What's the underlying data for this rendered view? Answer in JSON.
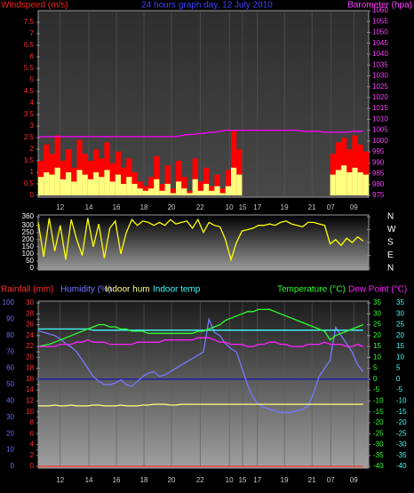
{
  "chart_data": [
    {
      "type": "bar",
      "title": "24 hours graph day, 12 July 2010",
      "ylabel": "Windspeed (m/s)",
      "y2label": "Barometer (hpa)",
      "x": [
        0,
        1,
        2,
        3,
        4,
        5,
        6,
        7,
        8,
        9,
        10,
        11,
        12,
        13,
        14,
        15,
        16,
        17,
        18,
        19,
        20,
        21,
        22,
        23,
        24,
        25,
        26,
        27,
        28,
        29,
        30,
        31,
        32,
        33,
        34,
        35,
        36,
        37,
        38,
        39,
        40,
        41,
        42,
        43,
        44,
        45,
        46,
        47,
        48,
        49,
        50,
        51,
        52,
        53,
        54,
        55,
        56,
        57,
        58,
        59
      ],
      "xlim": [
        0,
        60
      ],
      "xticks": [
        {
          "value": 4,
          "label": "12"
        },
        {
          "value": 9.2,
          "label": "14"
        },
        {
          "value": 14.2,
          "label": "16"
        },
        {
          "value": 19.2,
          "label": "18"
        },
        {
          "value": 24.2,
          "label": "20"
        },
        {
          "value": 29.4,
          "label": "22"
        },
        {
          "value": 34.7,
          "label": "10"
        },
        {
          "value": 37.1,
          "label": "15"
        },
        {
          "value": 39.8,
          "label": "17"
        },
        {
          "value": 44.7,
          "label": "19"
        },
        {
          "value": 49.7,
          "label": "21"
        },
        {
          "value": 53.1,
          "label": "07"
        },
        {
          "value": 57.3,
          "label": "09"
        }
      ],
      "ylim": [
        0,
        8
      ],
      "yticks": [
        0,
        0.5,
        1,
        1.5,
        2,
        2.5,
        3,
        3.5,
        4,
        4.5,
        5,
        5.5,
        6,
        6.5,
        7,
        7.5
      ],
      "y2lim": [
        975,
        1060
      ],
      "y2ticks": [
        975,
        980,
        985,
        990,
        995,
        1000,
        1005,
        1010,
        1015,
        1020,
        1025,
        1030,
        1035,
        1040,
        1045,
        1050,
        1055,
        1060
      ],
      "grid": true,
      "series": [
        {
          "color": "#ff0000",
          "values": [
            1.5,
            2.2,
            1.8,
            2.6,
            1.5,
            2.0,
            1.2,
            2.4,
            1.8,
            1.5,
            2.0,
            1.6,
            2.3,
            1.4,
            1.9,
            1.2,
            1.6,
            1.0,
            0.6,
            0.4,
            0.8,
            1.7,
            0.5,
            1.3,
            0.3,
            1.5,
            0.8,
            0.2,
            1.6,
            0.6,
            1.2,
            0.4,
            0.9,
            0.3,
            1.1,
            2.8,
            2.0,
            0,
            0,
            0,
            0,
            0,
            0,
            0,
            0,
            0,
            0,
            0,
            0,
            0,
            0,
            0,
            0,
            1.8,
            2.3,
            2.5,
            2.0,
            2.6,
            2.2,
            1.9
          ]
        },
        {
          "color": "#ffff80",
          "values": [
            0.8,
            1.0,
            0.9,
            1.2,
            0.7,
            1.0,
            0.6,
            1.1,
            0.9,
            0.7,
            1.0,
            0.8,
            1.1,
            0.6,
            0.9,
            0.5,
            0.8,
            0.5,
            0.3,
            0.2,
            0.3,
            0.7,
            0.2,
            0.5,
            0.1,
            0.6,
            0.3,
            0.1,
            0.7,
            0.2,
            0.5,
            0.2,
            0.4,
            0.1,
            0.4,
            1.2,
            0.9,
            0,
            0,
            0,
            0,
            0,
            0,
            0,
            0,
            0,
            0,
            0,
            0,
            0,
            0,
            0,
            0,
            0.9,
            1.1,
            1.3,
            1.0,
            1.2,
            1.0,
            0.9
          ]
        },
        {
          "type": "line",
          "axis": "y2",
          "color": "#ff00ff",
          "values": [
            1002,
            1002,
            1002,
            1002,
            1002,
            1002,
            1002,
            1002,
            1002,
            1002,
            1002,
            1002,
            1002,
            1002,
            1002,
            1002,
            1002,
            1002,
            1002,
            1002,
            1002,
            1002,
            1002,
            1002,
            1002,
            1002,
            1002.5,
            1003,
            1003,
            1003.5,
            1003.5,
            1004,
            1004,
            1004.5,
            1005,
            1005,
            1005,
            1005,
            1005,
            1005,
            1005,
            1005,
            1005,
            1005,
            1005,
            1005,
            1005,
            1005,
            1004.5,
            1004.5,
            1004.5,
            1004.5,
            1004,
            1004,
            1004,
            1004,
            1004,
            1004.5,
            1004.5,
            1004.5
          ]
        }
      ]
    },
    {
      "type": "line",
      "x": [
        0,
        1,
        2,
        3,
        4,
        5,
        6,
        7,
        8,
        9,
        10,
        11,
        12,
        13,
        14,
        15,
        16,
        17,
        18,
        19,
        20,
        21,
        22,
        23,
        24,
        25,
        26,
        27,
        28,
        29,
        30,
        31,
        32,
        33,
        34,
        35,
        36,
        37,
        38,
        39,
        40,
        41,
        42,
        43,
        44,
        45,
        46,
        47,
        48,
        49,
        50,
        51,
        52,
        53,
        54,
        55,
        56,
        57,
        58,
        59
      ],
      "xlim": [
        0,
        60
      ],
      "ylim": [
        0,
        360
      ],
      "yticks": [
        0,
        50,
        100,
        150,
        200,
        250,
        300,
        360
      ],
      "y2ticks": [
        {
          "value": 360,
          "label": "N"
        },
        {
          "value": 270,
          "label": "W"
        },
        {
          "value": 180,
          "label": "S"
        },
        {
          "value": 90,
          "label": "E"
        },
        {
          "value": 0,
          "label": "N"
        }
      ],
      "series": [
        {
          "color": "#ffff00",
          "values": [
            320,
            80,
            350,
            120,
            300,
            60,
            340,
            200,
            90,
            350,
            150,
            310,
            70,
            280,
            330,
            100,
            250,
            340,
            300,
            330,
            320,
            300,
            320,
            300,
            340,
            310,
            320,
            330,
            280,
            340,
            250,
            320,
            300,
            290,
            200,
            60,
            180,
            260,
            270,
            280,
            300,
            300,
            310,
            300,
            320,
            330,
            310,
            300,
            290,
            320,
            320,
            310,
            300,
            170,
            200,
            160,
            210,
            180,
            220,
            190
          ]
        }
      ]
    },
    {
      "type": "line",
      "x": [
        0,
        1,
        2,
        3,
        4,
        5,
        6,
        7,
        8,
        9,
        10,
        11,
        12,
        13,
        14,
        15,
        16,
        17,
        18,
        19,
        20,
        21,
        22,
        23,
        24,
        25,
        26,
        27,
        28,
        29,
        30,
        31,
        32,
        33,
        34,
        35,
        36,
        37,
        38,
        39,
        40,
        41,
        42,
        43,
        44,
        45,
        46,
        47,
        48,
        49,
        50,
        51,
        52,
        53,
        54,
        55,
        56,
        57,
        58,
        59
      ],
      "xlim": [
        0,
        60
      ],
      "xticks": [
        {
          "value": 4,
          "label": "12"
        },
        {
          "value": 9.2,
          "label": "14"
        },
        {
          "value": 14.2,
          "label": "16"
        },
        {
          "value": 19.2,
          "label": "18"
        },
        {
          "value": 24.2,
          "label": "20"
        },
        {
          "value": 29.4,
          "label": "22"
        },
        {
          "value": 34.7,
          "label": "10"
        },
        {
          "value": 37.1,
          "label": "15"
        },
        {
          "value": 39.8,
          "label": "17"
        },
        {
          "value": 44.7,
          "label": "19"
        },
        {
          "value": 49.7,
          "label": "21"
        },
        {
          "value": 53.1,
          "label": "07"
        },
        {
          "value": 57.3,
          "label": "09"
        }
      ],
      "ylim": [
        0,
        100
      ],
      "yticks": [
        0,
        10,
        20,
        30,
        40,
        50,
        60,
        70,
        80,
        90,
        100
      ],
      "rainlim": [
        0,
        30
      ],
      "rainticks": [
        0,
        2,
        4,
        6,
        8,
        10,
        12,
        14,
        16,
        18,
        20,
        22,
        24,
        26,
        28,
        30
      ],
      "y2lim": [
        -40,
        35
      ],
      "y2ticks": [
        -40,
        -35,
        -30,
        -25,
        -20,
        -15,
        -10,
        -5,
        0,
        5,
        10,
        15,
        20,
        25,
        30,
        35
      ],
      "dewticks": [
        -40,
        -35,
        -30,
        -25,
        -20,
        -15,
        -10,
        -5,
        0,
        5,
        10,
        15,
        20,
        25,
        30,
        35
      ],
      "grid": true,
      "series": [
        {
          "name": "Rainfall (mm)",
          "axis": "rain",
          "color": "#ff3030",
          "values": [
            0,
            0,
            0,
            0,
            0,
            0,
            0,
            0,
            0,
            0,
            0,
            0,
            0,
            0,
            0,
            0,
            0,
            0,
            0,
            0,
            0,
            0,
            0,
            0,
            0,
            0,
            0,
            0,
            0,
            0,
            0,
            0,
            0,
            0,
            0,
            0,
            0,
            0,
            0,
            0,
            0,
            0,
            0,
            0,
            0,
            0,
            0,
            0,
            0,
            0,
            0,
            0,
            0,
            0,
            0,
            0,
            0,
            0,
            0,
            0
          ]
        },
        {
          "name": "Humidity (%)",
          "color": "#7878ff",
          "values": [
            83,
            82,
            81,
            80,
            78,
            75,
            73,
            70,
            65,
            60,
            55,
            52,
            50,
            50,
            51,
            53,
            50,
            49,
            52,
            55,
            57,
            58,
            55,
            56,
            58,
            60,
            62,
            64,
            66,
            68,
            70,
            90,
            82,
            80,
            75,
            72,
            70,
            60,
            50,
            42,
            38,
            36,
            35,
            34,
            33,
            33,
            33,
            34,
            35,
            37,
            45,
            55,
            60,
            65,
            85,
            80,
            75,
            70,
            62,
            58
          ]
        },
        {
          "name": "Indoor hum",
          "color": "#ffff80",
          "values": [
            37,
            37,
            37,
            37.5,
            37,
            37,
            37.5,
            37,
            37,
            37,
            37.5,
            37.5,
            37,
            37,
            37,
            37.5,
            37,
            37,
            37,
            37.5,
            37.5,
            38,
            38,
            38,
            37.5,
            37.5,
            38,
            38,
            38,
            38,
            38,
            38,
            38,
            38,
            38,
            38,
            38,
            38,
            38,
            38,
            38,
            38,
            38,
            38,
            38,
            38,
            38,
            38,
            38,
            38,
            38,
            38,
            38,
            38,
            38,
            38,
            38,
            38,
            38,
            38
          ]
        },
        {
          "name": "Indoor temp",
          "axis": "y2",
          "color": "#40ffff",
          "values": [
            23,
            23,
            23,
            23,
            23,
            23,
            23,
            23,
            23,
            23,
            22.5,
            22.5,
            22.5,
            22.5,
            22.5,
            22.5,
            22.5,
            22.5,
            22.5,
            22.5,
            22.5,
            22.5,
            22.5,
            22.5,
            22.5,
            22.5,
            22.5,
            22.5,
            22.5,
            22.5,
            22.5,
            22.5,
            22.5,
            22.5,
            22.5,
            22.5,
            22.5,
            22.5,
            22.5,
            22.5,
            22.5,
            22.5,
            22.5,
            22.5,
            22.5,
            22.5,
            22.5,
            22.5,
            22.5,
            22.5,
            22.5,
            22.5,
            22.5,
            22.5,
            22.5,
            22.5,
            22.5,
            22.5,
            22.5,
            22.5
          ]
        },
        {
          "name": "Temperature (°C)",
          "axis": "y2",
          "color": "#30ff30",
          "values": [
            15,
            15.5,
            16,
            17,
            18,
            19,
            20,
            21,
            22,
            23,
            24,
            25,
            25,
            24,
            24,
            23,
            23,
            22,
            22,
            22,
            21,
            21,
            21,
            21,
            21,
            21,
            21,
            21,
            21,
            22,
            22,
            23,
            24,
            25,
            27,
            28,
            29,
            30,
            31,
            31,
            32,
            32,
            32,
            31,
            30,
            29,
            28,
            27,
            26,
            25,
            24,
            23,
            22,
            18,
            20,
            21,
            22,
            23,
            24,
            25
          ]
        },
        {
          "name": "Dew Point (°C)",
          "axis": "y2",
          "color": "#ff20ff",
          "values": [
            15,
            15,
            15,
            15,
            16,
            16,
            16,
            17,
            17,
            18,
            17,
            17,
            17,
            16,
            16,
            16,
            16,
            16,
            17,
            17,
            17,
            17,
            17,
            18,
            18,
            18,
            18,
            18,
            18,
            19,
            19,
            19,
            18,
            17,
            17,
            16,
            16,
            16,
            15,
            15,
            16,
            16,
            17,
            17,
            16,
            16,
            15,
            15,
            15,
            16,
            16,
            16,
            17,
            16,
            16,
            16,
            15,
            15,
            16,
            15
          ]
        }
      ]
    }
  ]
}
